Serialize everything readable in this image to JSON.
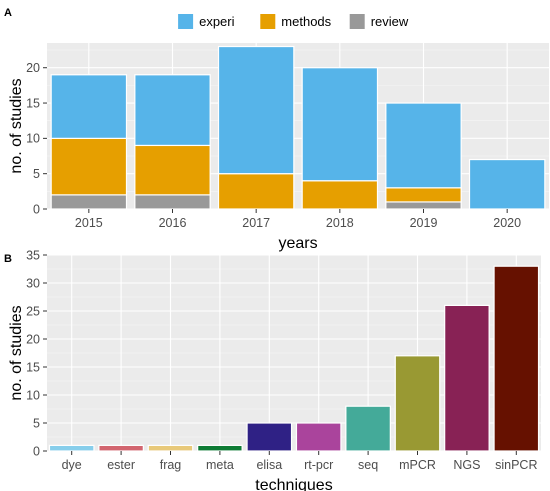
{
  "figure": {
    "panel_tags": [
      "A",
      "B"
    ]
  },
  "chart_data": [
    {
      "type": "bar",
      "stacked": true,
      "panel": "A",
      "categories": [
        "2015",
        "2016",
        "2017",
        "2018",
        "2019",
        "2020"
      ],
      "series": [
        {
          "name": "review",
          "color": "#999999",
          "values": [
            2,
            2,
            0,
            0,
            1,
            0
          ]
        },
        {
          "name": "methods",
          "color": "#E69F00",
          "values": [
            8,
            7,
            5,
            4,
            2,
            0
          ]
        },
        {
          "name": "experi",
          "color": "#56B4E9",
          "values": [
            9,
            10,
            18,
            16,
            12,
            7
          ]
        }
      ],
      "legend_order": [
        "experi",
        "methods",
        "review"
      ],
      "legend_position": "top",
      "xlabel": "years",
      "ylabel": "no. of studies",
      "ylim": [
        0,
        23.5
      ],
      "yticks": [
        0,
        5,
        10,
        15,
        20
      ],
      "grid": true
    },
    {
      "type": "bar",
      "panel": "B",
      "categories": [
        "dye",
        "ester",
        "frag",
        "meta",
        "elisa",
        "rt-pcr",
        "seq",
        "mPCR",
        "NGS",
        "sinPCR"
      ],
      "values": [
        1,
        1,
        1,
        1,
        5,
        5,
        8,
        17,
        26,
        33
      ],
      "colors": [
        "#87CEEB",
        "#D2656F",
        "#E8C97A",
        "#0E7B34",
        "#2F2185",
        "#AA449C",
        "#44AA99",
        "#999933",
        "#882255",
        "#661100"
      ],
      "xlabel": "techniques",
      "ylabel": "no. of studies",
      "ylim": [
        0,
        35
      ],
      "yticks": [
        0,
        5,
        10,
        15,
        20,
        25,
        30,
        35
      ],
      "grid": true
    }
  ]
}
